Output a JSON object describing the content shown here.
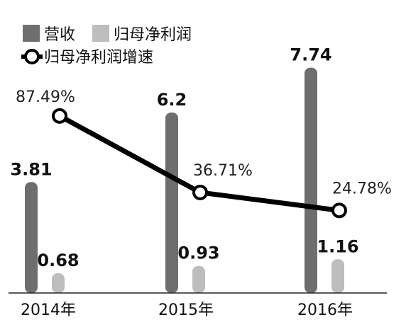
{
  "colors": {
    "revenue": "#6e6e6e",
    "net_profit": "#bdbdbd",
    "growth_line": "#000000",
    "marker_fill": "#ffffff"
  },
  "chart_data": {
    "type": "bar",
    "categories": [
      "2014年",
      "2015年",
      "2016年"
    ],
    "series": [
      {
        "name": "营收",
        "kind": "bar",
        "values": [
          3.81,
          6.2,
          7.74
        ],
        "labels": [
          "3.81",
          "6.2",
          "7.74"
        ]
      },
      {
        "name": "归母净利润",
        "kind": "bar",
        "values": [
          0.68,
          0.93,
          1.16
        ],
        "labels": [
          "0.68",
          "0.93",
          "1.16"
        ]
      },
      {
        "name": "归母净利润增速",
        "kind": "line",
        "values": [
          87.49,
          36.71,
          24.78
        ],
        "labels": [
          "87.49%",
          "36.71%",
          "24.78%"
        ]
      }
    ],
    "ylim": [
      0,
      8.8
    ],
    "y2lim": [
      -30,
      140
    ],
    "grid": false,
    "legend": "top-left"
  }
}
